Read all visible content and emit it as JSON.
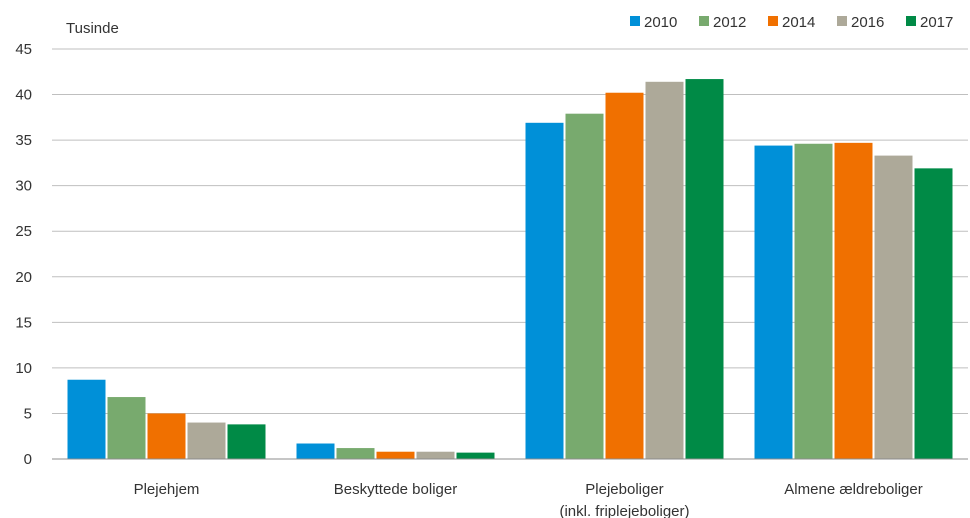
{
  "chart_data": {
    "type": "bar",
    "unit_label": "Tusinde",
    "categories": [
      [
        "Plejehjem"
      ],
      [
        "Beskyttede boliger"
      ],
      [
        "Plejeboliger",
        "(inkl. friplejeboliger)"
      ],
      [
        "Almene ældreboliger"
      ]
    ],
    "series": [
      {
        "name": "2010",
        "color": "#0090d8",
        "values": [
          8.7,
          1.7,
          36.9,
          34.4
        ]
      },
      {
        "name": "2012",
        "color": "#78aa6e",
        "values": [
          6.8,
          1.2,
          37.9,
          34.6
        ]
      },
      {
        "name": "2014",
        "color": "#f07000",
        "values": [
          5.0,
          0.8,
          40.2,
          34.7
        ]
      },
      {
        "name": "2016",
        "color": "#ada999",
        "values": [
          4.0,
          0.8,
          41.4,
          33.3
        ]
      },
      {
        "name": "2017",
        "color": "#008a46",
        "values": [
          3.8,
          0.7,
          41.7,
          31.9
        ]
      }
    ],
    "y_ticks": [
      "0",
      "5",
      "10",
      "15",
      "20",
      "25",
      "30",
      "35",
      "40",
      "45"
    ],
    "ylim": [
      0,
      45
    ],
    "grid": true,
    "legend_position": "top-right"
  }
}
